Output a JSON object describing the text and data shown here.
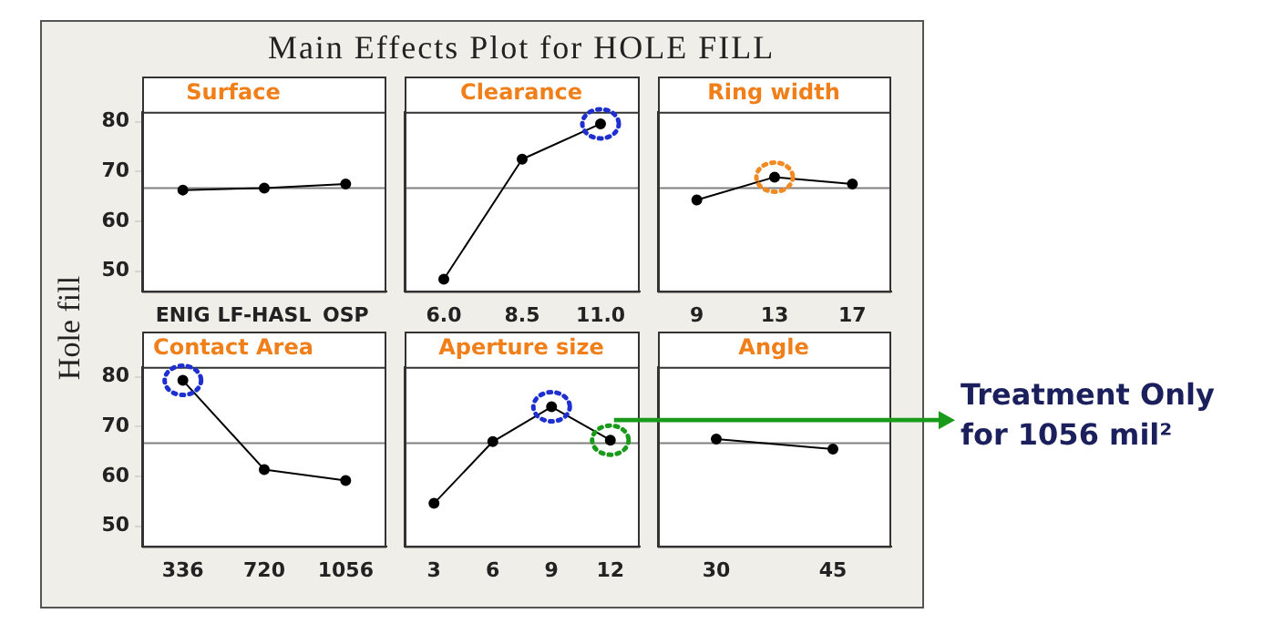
{
  "chart_data": [
    {
      "type": "line",
      "title": "Surface",
      "annotations": [
        "Main Effects Plot for HOLE FILL"
      ],
      "ylabel": "Hole fill",
      "categories": [
        "ENIG",
        "LF-HASL",
        "OSP"
      ],
      "values": [
        66.3,
        66.7,
        67.5
      ],
      "color": "#000000",
      "ylim": [
        46,
        82
      ],
      "yticks": [
        50,
        60,
        70,
        80
      ],
      "marker": "circle",
      "ref_lines": [
        {
          "axis": "y",
          "value": 66.7,
          "color": "#808080"
        }
      ]
    },
    {
      "type": "line",
      "title": "Clearance",
      "categories": [
        "6.0",
        "8.5",
        "11.0"
      ],
      "values": [
        48.4,
        72.5,
        79.6
      ],
      "color": "#000000",
      "ylim": [
        46,
        82
      ],
      "yticks": [
        50,
        60,
        70,
        80
      ],
      "marker": "circle",
      "tick_labels": "x",
      "ref_lines": [
        {
          "axis": "y",
          "value": 66.7,
          "color": "#808080"
        }
      ]
    },
    {
      "type": "line",
      "title": "Ring width",
      "categories": [
        "9",
        "13",
        "17"
      ],
      "values": [
        64.3,
        68.9,
        67.5
      ],
      "color": "#000000",
      "ylim": [
        46,
        82
      ],
      "yticks": [
        50,
        60,
        70,
        80
      ],
      "marker": "circle",
      "tick_labels": "x",
      "ref_lines": [
        {
          "axis": "y",
          "value": 66.7,
          "color": "#808080"
        }
      ]
    },
    {
      "type": "line",
      "title": "Contact Area",
      "categories": [
        "336",
        "720",
        "1056"
      ],
      "values": [
        79.3,
        61.4,
        59.2
      ],
      "color": "#000000",
      "ylim": [
        46,
        82
      ],
      "yticks": [
        50,
        60,
        70,
        80
      ],
      "marker": "circle",
      "ref_lines": [
        {
          "axis": "y",
          "value": 66.7,
          "color": "#808080"
        }
      ]
    },
    {
      "type": "line",
      "title": "Aperture size",
      "categories": [
        "3",
        "6",
        "9",
        "12"
      ],
      "values": [
        54.6,
        67.0,
        74.0,
        67.3
      ],
      "color": "#000000",
      "ylim": [
        46,
        82
      ],
      "yticks": [
        50,
        60,
        70,
        80
      ],
      "marker": "circle",
      "tick_labels": "x",
      "ref_lines": [
        {
          "axis": "y",
          "value": 66.7,
          "color": "#808080"
        }
      ],
      "annotations": [
        "Treatment Only for 1056 mil²"
      ]
    },
    {
      "type": "line",
      "title": "Angle",
      "categories": [
        "30",
        "45"
      ],
      "values": [
        67.5,
        65.5
      ],
      "color": "#000000",
      "ylim": [
        46,
        82
      ],
      "yticks": [
        50,
        60,
        70,
        80
      ],
      "marker": "circle",
      "tick_labels": "x",
      "ref_lines": [
        {
          "axis": "y",
          "value": 66.7,
          "color": "#808080"
        }
      ]
    }
  ]
}
